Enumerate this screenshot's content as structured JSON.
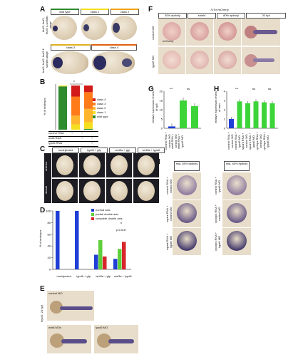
{
  "panelA": {
    "letter": "A",
    "top_row_label": "fezf2, foxf2, fezf3 1-somite-stage",
    "bottom_row_label": "fezf2, foxf2, fezf3 1-somite-stage",
    "headers": [
      "wild type",
      "class 1",
      "class 2",
      "class 3",
      "class 4"
    ]
  },
  "panelB": {
    "letter": "B",
    "ylabel": "% of embryos",
    "legend": [
      "class 4",
      "class 3",
      "class 2",
      "class 1",
      "wild type"
    ],
    "table_rows": [
      {
        "label": "control RNA",
        "marks": [
          "+",
          "+",
          ""
        ]
      },
      {
        "label": "wnt8 RNA",
        "marks": [
          "",
          "+",
          "+"
        ]
      },
      {
        "label": "lypd6 RNA",
        "marks": [
          "",
          "",
          "+"
        ]
      }
    ],
    "n_labels": [
      "n=XX",
      "n=XX",
      "n=XXX"
    ],
    "sig": "*"
  },
  "panelC": {
    "letter": "C",
    "headers": [
      "noninjected",
      "lypd6 + gfp",
      "wnt3a + gfp",
      "wnt3a + lypd6"
    ],
    "row_labels": [
      "anterior",
      "dorsal"
    ]
  },
  "panelD": {
    "letter": "D",
    "ylabel": "% of embryos",
    "legend": [
      "normal axis",
      "partial double axis",
      "complete double axis"
    ],
    "legend_colors": [
      "#1f3fd6",
      "#5ecf3a",
      "#d8262a"
    ],
    "groups": [
      "noninjected",
      "lypd6 + gfp",
      "wnt3a + gfp",
      "wnt3a + lypd6"
    ],
    "n_labels": [
      "n=",
      "201",
      "126",
      "128"
    ],
    "pvalue": "p=0.0117",
    "sig": "*"
  },
  "panelE": {
    "letter": "E",
    "row_label": "myoD, 24 hpf",
    "labels": [
      "control MO",
      "wnt8 MOs",
      "lypd6 MO"
    ]
  },
  "panelF": {
    "letter": "F",
    "header": "7xTcf:mCherry",
    "columns": [
      "30% epiboly",
      "shield",
      "80% epiboly",
      "20 hpf"
    ],
    "row_labels": [
      "control MO",
      "lypd6 MO"
    ],
    "overlay": "mCherry"
  },
  "panelG": {
    "letter": "G",
    "ylabel": "relative expression levels of sp5",
    "xlabels": [
      "control RNA + control MO",
      "wnt8 RNA + control MO",
      "wnt8 RNA + lypd6 MO"
    ],
    "sig": [
      "***",
      "ns"
    ]
  },
  "panelH": {
    "letter": "H",
    "ylabel": "relative expression levels of axin",
    "xlabels": [
      "control RNA + control MO",
      "control RNA + lypd6 MO",
      "squint RNA + control MO",
      "squint RNA + lypd6 MO",
      "cyclops RNA + control MO",
      "cyclops RNA + lypd6 MO"
    ],
    "sig": [
      "***",
      "ns",
      "ns"
    ]
  },
  "panelI": {
    "letter": "I",
    "headers": [
      "ntla, 65% epiboly",
      "ntla, 65% epiboly"
    ],
    "left_labels": [
      "control RNA + control MO",
      "squint RNA + control MO",
      "squint RNA + lypd6 MO"
    ],
    "right_labels": [
      "control RNA + lypd6 MO",
      "cyclops RNA + control MO",
      "cyclops RNA + lypd6 MO"
    ]
  },
  "chart_data": [
    {
      "type": "bar",
      "title": "",
      "ylabel": "% of embryos",
      "categories": [
        "control RNA",
        "wnt8 RNA",
        "wnt8 + lypd6 RNA"
      ],
      "ylim": [
        0,
        100
      ],
      "series": [
        {
          "name": "wild type",
          "values": [
            98,
            0,
            2
          ]
        },
        {
          "name": "class 1",
          "values": [
            2,
            12,
            15
          ]
        },
        {
          "name": "class 2",
          "values": [
            0,
            20,
            30
          ]
        },
        {
          "name": "class 3",
          "values": [
            0,
            43,
            38
          ]
        },
        {
          "name": "class 4",
          "values": [
            0,
            25,
            15
          ]
        }
      ]
    },
    {
      "type": "bar",
      "title": "",
      "ylabel": "% of embryos",
      "categories": [
        "noninjected",
        "lypd6 + gfp",
        "wnt3a + gfp",
        "wnt3a + lypd6"
      ],
      "ylim": [
        0,
        100
      ],
      "yticks": [
        0,
        20,
        40,
        60,
        80,
        100
      ],
      "series": [
        {
          "name": "normal axis",
          "values": [
            100,
            100,
            25,
            18
          ]
        },
        {
          "name": "partial double axis",
          "values": [
            0,
            0,
            50,
            35
          ]
        },
        {
          "name": "complete double axis",
          "values": [
            0,
            0,
            22,
            47
          ]
        }
      ]
    },
    {
      "type": "bar",
      "title": "",
      "ylabel": "relative expression levels of sp5",
      "categories": [
        "control RNA + control MO",
        "wnt8 RNA + control MO",
        "wnt8 RNA + lypd6 MO"
      ],
      "ylim": [
        0,
        20
      ],
      "yticks": [
        0,
        5,
        10,
        15,
        20
      ],
      "values": [
        1,
        15,
        12
      ]
    },
    {
      "type": "bar",
      "title": "",
      "ylabel": "relative expression levels of axin",
      "categories": [
        "control RNA + control MO",
        "control RNA + lypd6 MO",
        "squint RNA + control MO",
        "squint RNA + lypd6 MO",
        "cyclops RNA + control MO",
        "cyclops RNA + lypd6 MO"
      ],
      "ylim": [
        0,
        4
      ],
      "yticks": [
        0,
        1,
        2,
        3,
        4
      ],
      "values": [
        1,
        2.9,
        2.7,
        2.9,
        2.8,
        2.7
      ]
    }
  ]
}
